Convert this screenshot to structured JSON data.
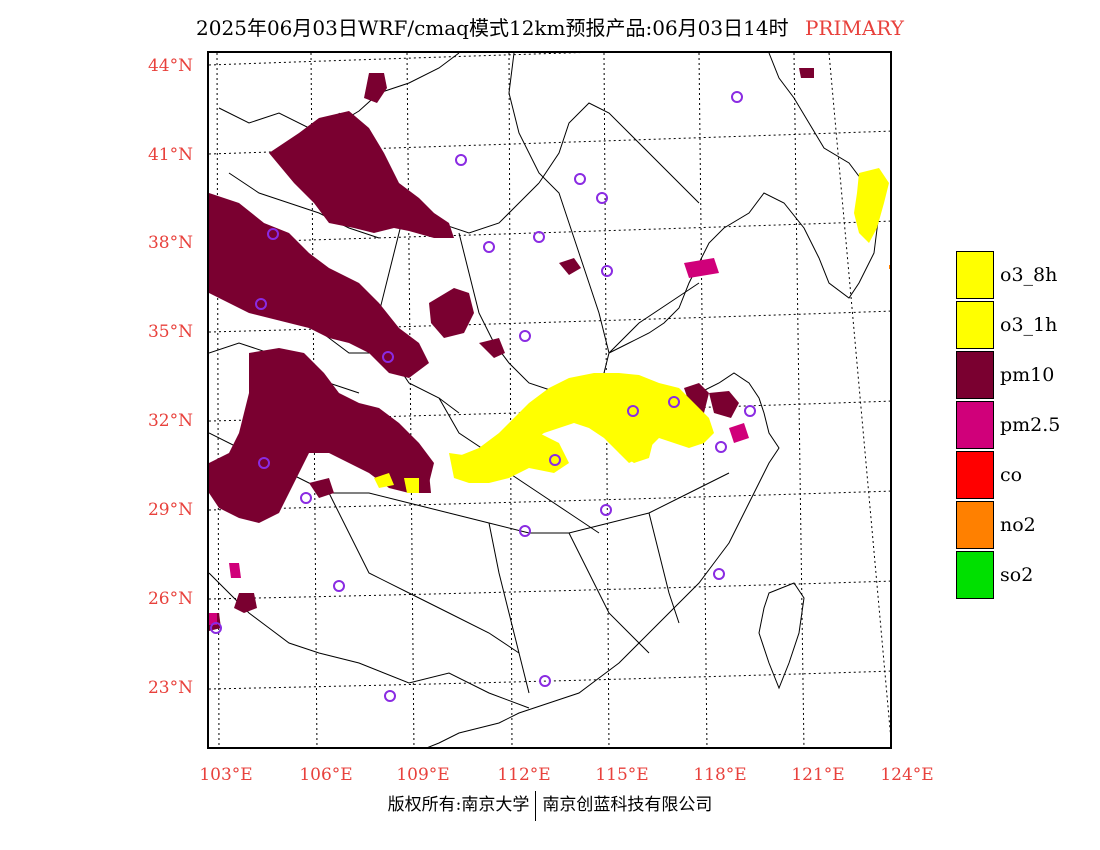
{
  "title": {
    "main": "2025年06月03日WRF/cmaq模式12km预报产品:06月03日14时",
    "tag": "PRIMARY"
  },
  "axes": {
    "lat_labels": [
      "44°N",
      "41°N",
      "38°N",
      "35°N",
      "32°N",
      "29°N",
      "26°N",
      "23°N"
    ],
    "lon_labels": [
      "103°E",
      "106°E",
      "109°E",
      "112°E",
      "115°E",
      "118°E",
      "121°E",
      "124°E"
    ]
  },
  "legend": [
    {
      "label": "o3_8h",
      "color": "#ffff00"
    },
    {
      "label": "o3_1h",
      "color": "#ffff00"
    },
    {
      "label": "pm10",
      "color": "#7a0030"
    },
    {
      "label": "pm2.5",
      "color": "#d0007a"
    },
    {
      "label": "co",
      "color": "#ff0000"
    },
    {
      "label": "no2",
      "color": "#ff8000"
    },
    {
      "label": "so2",
      "color": "#00e000"
    }
  ],
  "footer": {
    "left": "版权所有:南京大学",
    "right": "南京创蓝科技有限公司"
  },
  "colors": {
    "pm10": "#7a0030",
    "pm25": "#d0007a",
    "o3": "#ffff00",
    "no2": "#ff8000",
    "station_circle": "#8a2be2",
    "label_red": "#e8413c"
  }
}
